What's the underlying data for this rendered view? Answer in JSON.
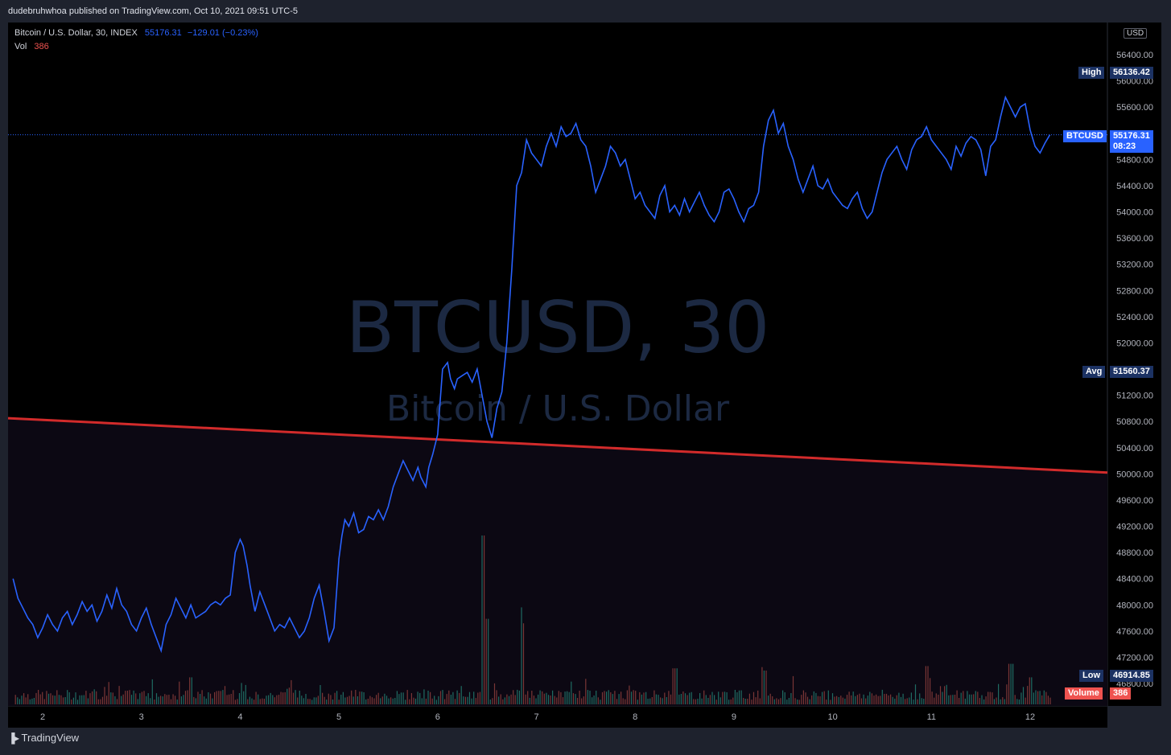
{
  "publisher_line": "dudebruhwhoa published on TradingView.com, Oct 10, 2021 09:51 UTC-5",
  "legend": {
    "symbol": "Bitcoin / U.S. Dollar, 30, INDEX",
    "last": "55176.31",
    "change": "−129.01 (−0.23%)",
    "vol_label": "Vol",
    "vol_value": "386"
  },
  "watermark": {
    "main": "BTCUSD, 30",
    "sub": "Bitcoin / U.S. Dollar"
  },
  "currency_badge": "USD",
  "labels": {
    "high_label": "High",
    "high_value": "56136.42",
    "last_label": "BTCUSD",
    "last_value": "55176.31",
    "countdown": "08:23",
    "avg_label": "Avg",
    "avg_value": "51560.37",
    "low_label": "Low",
    "low_value": "46914.85",
    "volume_label": "Volume",
    "volume_value": "386"
  },
  "footer_brand": "TradingView",
  "colors": {
    "price_line": "#2962ff",
    "trendline": "#e0302f",
    "volume_up": "#26a69a",
    "volume_down": "#ef5350",
    "high_low_avg": "#1c3263",
    "last_box": "#2962ff",
    "volume_box": "#ef5350"
  },
  "icons": {
    "brand": "tradingview-logo-icon"
  },
  "chart_data": {
    "type": "line",
    "title": "BTCUSD, 30",
    "x_ticks": [
      "2",
      "3",
      "4",
      "5",
      "6",
      "7",
      "8",
      "9",
      "10",
      "11",
      "12"
    ],
    "y_ticks": [
      56400,
      56000,
      55600,
      55200,
      54800,
      54400,
      54000,
      53600,
      53200,
      52800,
      52400,
      52000,
      51600,
      51200,
      50800,
      50400,
      50000,
      49600,
      49200,
      48800,
      48400,
      48000,
      47600,
      47200,
      46800
    ],
    "ylim": [
      46600,
      56800
    ],
    "xlim": [
      1.7,
      12.8
    ],
    "series": [
      {
        "values": [
          [
            1.7,
            48400
          ],
          [
            1.75,
            48100
          ],
          [
            1.8,
            47950
          ],
          [
            1.85,
            47800
          ],
          [
            1.9,
            47700
          ],
          [
            1.95,
            47500
          ],
          [
            2.0,
            47650
          ],
          [
            2.05,
            47850
          ],
          [
            2.1,
            47700
          ],
          [
            2.15,
            47600
          ],
          [
            2.2,
            47800
          ],
          [
            2.25,
            47900
          ],
          [
            2.3,
            47700
          ],
          [
            2.35,
            47850
          ],
          [
            2.4,
            48050
          ],
          [
            2.45,
            47900
          ],
          [
            2.5,
            48000
          ],
          [
            2.55,
            47750
          ],
          [
            2.6,
            47900
          ],
          [
            2.65,
            48150
          ],
          [
            2.7,
            47950
          ],
          [
            2.75,
            48250
          ],
          [
            2.8,
            48000
          ],
          [
            2.85,
            47900
          ],
          [
            2.9,
            47700
          ],
          [
            2.95,
            47600
          ],
          [
            3.0,
            47800
          ],
          [
            3.05,
            47950
          ],
          [
            3.1,
            47700
          ],
          [
            3.15,
            47500
          ],
          [
            3.2,
            47300
          ],
          [
            3.25,
            47700
          ],
          [
            3.3,
            47850
          ],
          [
            3.35,
            48100
          ],
          [
            3.4,
            47950
          ],
          [
            3.45,
            47800
          ],
          [
            3.5,
            48000
          ],
          [
            3.55,
            47800
          ],
          [
            3.6,
            47850
          ],
          [
            3.65,
            47900
          ],
          [
            3.7,
            48000
          ],
          [
            3.75,
            48050
          ],
          [
            3.8,
            48000
          ],
          [
            3.85,
            48100
          ],
          [
            3.9,
            48150
          ],
          [
            3.95,
            48800
          ],
          [
            4.0,
            49000
          ],
          [
            4.03,
            48900
          ],
          [
            4.07,
            48600
          ],
          [
            4.1,
            48300
          ],
          [
            4.15,
            47900
          ],
          [
            4.2,
            48200
          ],
          [
            4.25,
            48000
          ],
          [
            4.3,
            47800
          ],
          [
            4.35,
            47600
          ],
          [
            4.4,
            47700
          ],
          [
            4.45,
            47650
          ],
          [
            4.5,
            47800
          ],
          [
            4.55,
            47650
          ],
          [
            4.6,
            47500
          ],
          [
            4.65,
            47600
          ],
          [
            4.7,
            47800
          ],
          [
            4.75,
            48100
          ],
          [
            4.8,
            48300
          ],
          [
            4.85,
            47900
          ],
          [
            4.9,
            47450
          ],
          [
            4.95,
            47650
          ],
          [
            5.0,
            48700
          ],
          [
            5.03,
            49050
          ],
          [
            5.06,
            49300
          ],
          [
            5.1,
            49200
          ],
          [
            5.15,
            49400
          ],
          [
            5.2,
            49100
          ],
          [
            5.25,
            49150
          ],
          [
            5.3,
            49350
          ],
          [
            5.35,
            49300
          ],
          [
            5.4,
            49450
          ],
          [
            5.45,
            49300
          ],
          [
            5.5,
            49500
          ],
          [
            5.55,
            49800
          ],
          [
            5.6,
            50000
          ],
          [
            5.65,
            50200
          ],
          [
            5.7,
            50050
          ],
          [
            5.75,
            49900
          ],
          [
            5.8,
            50100
          ],
          [
            5.83,
            49950
          ],
          [
            5.88,
            49800
          ],
          [
            5.91,
            50100
          ],
          [
            5.95,
            50300
          ],
          [
            6.0,
            50600
          ],
          [
            6.05,
            51600
          ],
          [
            6.1,
            51700
          ],
          [
            6.13,
            51450
          ],
          [
            6.17,
            51300
          ],
          [
            6.2,
            51450
          ],
          [
            6.25,
            51500
          ],
          [
            6.3,
            51550
          ],
          [
            6.35,
            51400
          ],
          [
            6.4,
            51600
          ],
          [
            6.45,
            51200
          ],
          [
            6.5,
            50800
          ],
          [
            6.55,
            50550
          ],
          [
            6.6,
            51000
          ],
          [
            6.65,
            51250
          ],
          [
            6.7,
            52000
          ],
          [
            6.75,
            53100
          ],
          [
            6.8,
            54400
          ],
          [
            6.85,
            54600
          ],
          [
            6.9,
            55100
          ],
          [
            6.95,
            54900
          ],
          [
            7.0,
            54800
          ],
          [
            7.05,
            54700
          ],
          [
            7.1,
            55000
          ],
          [
            7.15,
            55200
          ],
          [
            7.2,
            55000
          ],
          [
            7.25,
            55300
          ],
          [
            7.3,
            55150
          ],
          [
            7.35,
            55200
          ],
          [
            7.4,
            55350
          ],
          [
            7.45,
            55100
          ],
          [
            7.5,
            55000
          ],
          [
            7.55,
            54700
          ],
          [
            7.6,
            54300
          ],
          [
            7.65,
            54500
          ],
          [
            7.7,
            54700
          ],
          [
            7.75,
            55000
          ],
          [
            7.8,
            54900
          ],
          [
            7.85,
            54700
          ],
          [
            7.9,
            54800
          ],
          [
            7.95,
            54500
          ],
          [
            8.0,
            54200
          ],
          [
            8.05,
            54300
          ],
          [
            8.1,
            54100
          ],
          [
            8.15,
            54000
          ],
          [
            8.2,
            53900
          ],
          [
            8.25,
            54250
          ],
          [
            8.3,
            54400
          ],
          [
            8.35,
            54000
          ],
          [
            8.4,
            54100
          ],
          [
            8.45,
            53950
          ],
          [
            8.5,
            54200
          ],
          [
            8.55,
            54000
          ],
          [
            8.6,
            54150
          ],
          [
            8.65,
            54300
          ],
          [
            8.7,
            54100
          ],
          [
            8.75,
            53950
          ],
          [
            8.8,
            53850
          ],
          [
            8.85,
            54000
          ],
          [
            8.9,
            54300
          ],
          [
            8.95,
            54350
          ],
          [
            9.0,
            54200
          ],
          [
            9.05,
            54000
          ],
          [
            9.1,
            53850
          ],
          [
            9.15,
            54050
          ],
          [
            9.2,
            54100
          ],
          [
            9.25,
            54300
          ],
          [
            9.3,
            55000
          ],
          [
            9.35,
            55400
          ],
          [
            9.4,
            55550
          ],
          [
            9.45,
            55200
          ],
          [
            9.5,
            55350
          ],
          [
            9.55,
            55000
          ],
          [
            9.6,
            54800
          ],
          [
            9.65,
            54500
          ],
          [
            9.7,
            54300
          ],
          [
            9.75,
            54500
          ],
          [
            9.8,
            54700
          ],
          [
            9.85,
            54400
          ],
          [
            9.9,
            54350
          ],
          [
            9.95,
            54500
          ],
          [
            10.0,
            54300
          ],
          [
            10.05,
            54200
          ],
          [
            10.1,
            54100
          ],
          [
            10.15,
            54050
          ],
          [
            10.2,
            54200
          ],
          [
            10.25,
            54300
          ],
          [
            10.3,
            54050
          ],
          [
            10.35,
            53900
          ],
          [
            10.4,
            54000
          ],
          [
            10.45,
            54300
          ],
          [
            10.5,
            54600
          ],
          [
            10.55,
            54800
          ],
          [
            10.6,
            54900
          ],
          [
            10.65,
            55000
          ],
          [
            10.7,
            54800
          ],
          [
            10.75,
            54650
          ],
          [
            10.8,
            54950
          ],
          [
            10.85,
            55100
          ],
          [
            10.9,
            55150
          ],
          [
            10.95,
            55300
          ],
          [
            11.0,
            55100
          ],
          [
            11.05,
            55000
          ],
          [
            11.1,
            54900
          ],
          [
            11.15,
            54800
          ],
          [
            11.2,
            54650
          ],
          [
            11.25,
            55000
          ],
          [
            11.3,
            54850
          ],
          [
            11.35,
            55050
          ],
          [
            11.4,
            55150
          ],
          [
            11.45,
            55100
          ],
          [
            11.5,
            54950
          ],
          [
            11.55,
            54550
          ],
          [
            11.6,
            55000
          ],
          [
            11.65,
            55100
          ],
          [
            11.7,
            55450
          ],
          [
            11.75,
            55750
          ],
          [
            11.8,
            55600
          ],
          [
            11.85,
            55450
          ],
          [
            11.9,
            55600
          ],
          [
            11.95,
            55650
          ],
          [
            12.0,
            55250
          ],
          [
            12.05,
            55000
          ],
          [
            12.1,
            54900
          ],
          [
            12.15,
            55050
          ],
          [
            12.2,
            55176
          ]
        ]
      }
    ],
    "trendline": {
      "x": [
        1.7,
        12.8
      ],
      "y": [
        50850,
        50020
      ]
    },
    "volume": {
      "peaks": [
        [
          3.5,
          120
        ],
        [
          6.45,
          750
        ],
        [
          6.5,
          380
        ],
        [
          6.85,
          360
        ],
        [
          8.4,
          160
        ],
        [
          9.3,
          150
        ],
        [
          10.95,
          170
        ],
        [
          11.8,
          180
        ],
        [
          12.0,
          120
        ]
      ],
      "last": 386
    },
    "ylabel": "",
    "xlabel": "",
    "grid": false
  }
}
